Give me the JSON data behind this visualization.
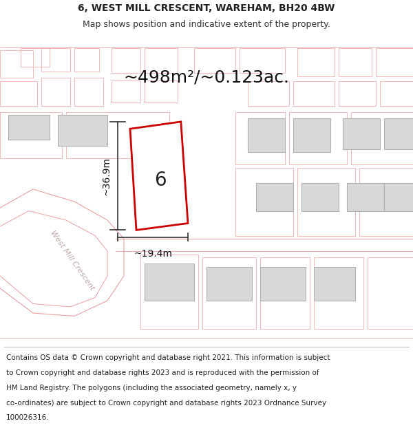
{
  "title_line1": "6, WEST MILL CRESCENT, WAREHAM, BH20 4BW",
  "title_line2": "Map shows position and indicative extent of the property.",
  "area_text": "~498m²/~0.123ac.",
  "label_number": "6",
  "dim_height": "~36.9m",
  "dim_width": "~19.4m",
  "road_label": "West Mill Crescent",
  "footer_lines": [
    "Contains OS data © Crown copyright and database right 2021. This information is subject",
    "to Crown copyright and database rights 2023 and is reproduced with the permission of",
    "HM Land Registry. The polygons (including the associated geometry, namely x, y",
    "co-ordinates) are subject to Crown copyright and database rights 2023 Ordnance Survey",
    "100026316."
  ],
  "bg_color": "#ffffff",
  "building_fill": "#d8d8d8",
  "building_edge": "#b0b0b0",
  "light_pink": "#f0b0b0",
  "road_lines": "#e8a0a0",
  "highlight_color": "#cc0000",
  "dim_line_color": "#333333",
  "road_text_color": "#c0a8a8",
  "title_fontsize": 10,
  "subtitle_fontsize": 9,
  "area_fontsize": 18,
  "label_fontsize": 20,
  "dim_fontsize": 10,
  "footer_fontsize": 7.5
}
